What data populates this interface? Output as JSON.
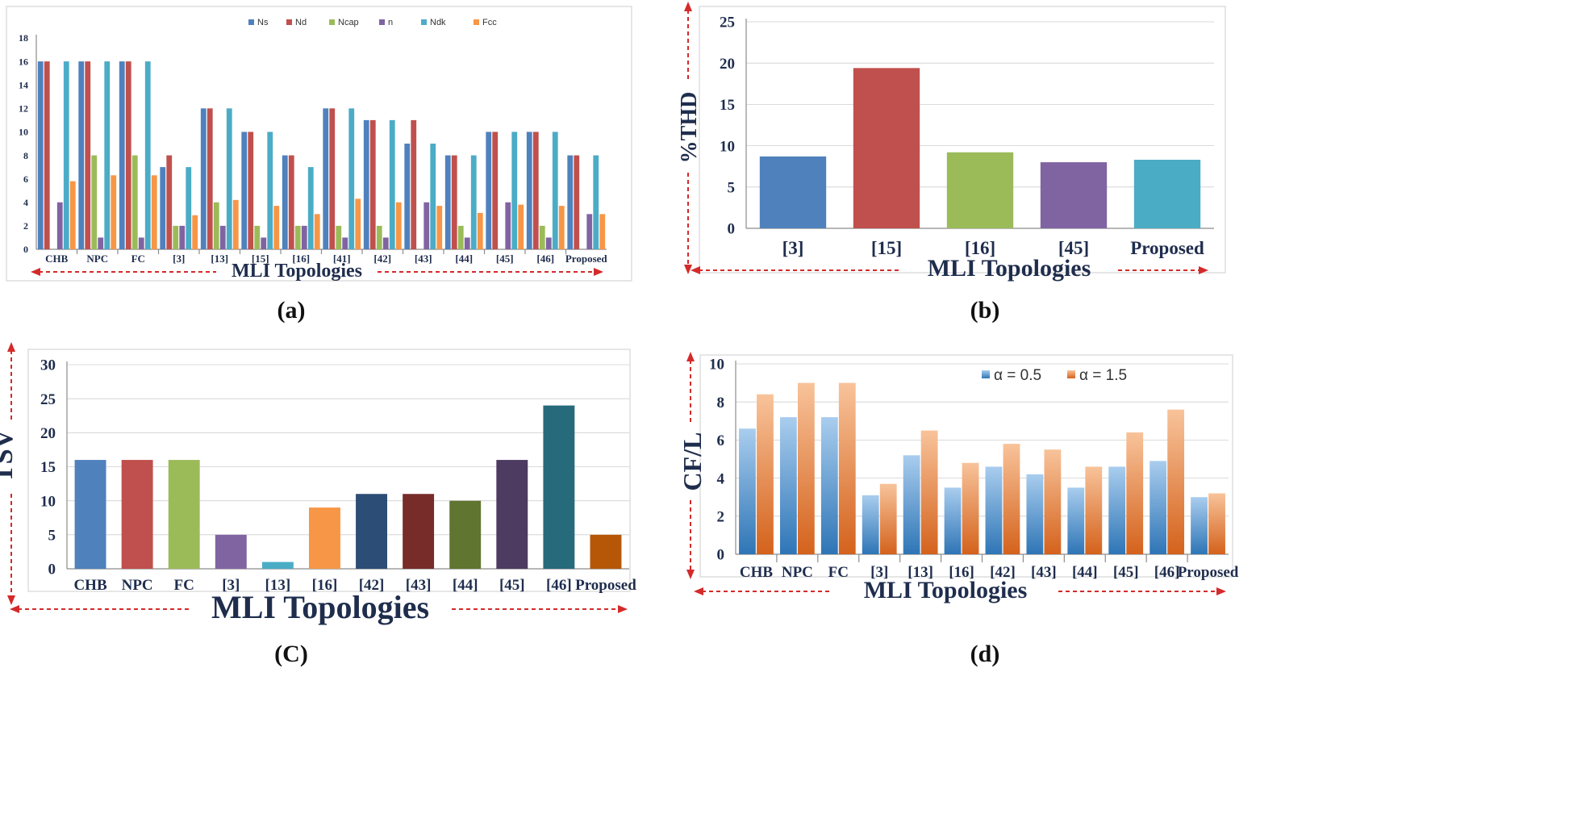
{
  "chart_data": [
    {
      "type": "bar",
      "panel_label": "(a)",
      "xlabel": "MLI Topologies",
      "ylabel": "",
      "ylim": [
        0,
        18
      ],
      "yticks": [
        "0",
        "2",
        "4",
        "6",
        "8",
        "10",
        "12",
        "14",
        "16",
        "18"
      ],
      "legend_position": "top",
      "categories": [
        "CHB",
        "NPC",
        "FC",
        "[3]",
        "[13]",
        "[15]",
        "[16]",
        "[41]",
        "[42]",
        "[43]",
        "[44]",
        "[45]",
        "[46]",
        "Proposed"
      ],
      "series": [
        {
          "name": "Ns",
          "color": "#4f81bd",
          "values": [
            16,
            16,
            16,
            7,
            12,
            10,
            8,
            12,
            11,
            9,
            8,
            10,
            10,
            8
          ]
        },
        {
          "name": "Nd",
          "color": "#c0504d",
          "values": [
            16,
            16,
            16,
            8,
            12,
            10,
            8,
            12,
            11,
            11,
            8,
            10,
            10,
            8
          ]
        },
        {
          "name": "Ncap",
          "color": "#9bbb59",
          "values": [
            0,
            8,
            8,
            2,
            4,
            2,
            2,
            2,
            2,
            0,
            2,
            0,
            2,
            0
          ]
        },
        {
          "name": "n",
          "color": "#8064a2",
          "values": [
            4,
            1,
            1,
            2,
            2,
            1,
            2,
            1,
            1,
            4,
            1,
            4,
            1,
            3
          ]
        },
        {
          "name": "Ndk",
          "color": "#4bacc6",
          "values": [
            16,
            16,
            16,
            7,
            12,
            10,
            7,
            12,
            11,
            9,
            8,
            10,
            10,
            8
          ]
        },
        {
          "name": "Fcc",
          "color": "#f79646",
          "values": [
            5.8,
            6.3,
            6.3,
            2.9,
            4.2,
            3.7,
            3.0,
            4.3,
            4.0,
            3.7,
            3.1,
            3.8,
            3.7,
            3.0
          ]
        }
      ]
    },
    {
      "type": "bar",
      "panel_label": "(b)",
      "xlabel": "MLI Topologies",
      "ylabel": "%THD",
      "ylim": [
        0,
        25
      ],
      "yticks": [
        "0",
        "5",
        "10",
        "15",
        "20",
        "25"
      ],
      "categories": [
        "[3]",
        "[15]",
        "[16]",
        "[45]",
        "Proposed"
      ],
      "colors": [
        "#4f81bd",
        "#c0504d",
        "#9bbb59",
        "#8064a2",
        "#4bacc6"
      ],
      "values": [
        8.7,
        19.4,
        9.2,
        8.0,
        8.3
      ]
    },
    {
      "type": "bar",
      "panel_label": "(C)",
      "xlabel": "MLI Topologies",
      "ylabel": "TSV",
      "ylim": [
        0,
        30
      ],
      "yticks": [
        "0",
        "5",
        "10",
        "15",
        "20",
        "25",
        "30"
      ],
      "categories": [
        "CHB",
        "NPC",
        "FC",
        "[3]",
        "[13]",
        "[16]",
        "[42]",
        "[43]",
        "[44]",
        "[45]",
        "[46]",
        "Proposed"
      ],
      "colors": [
        "#4f81bd",
        "#c0504d",
        "#9bbb59",
        "#8064a2",
        "#4bacc6",
        "#f79646",
        "#2c4d75",
        "#772c2a",
        "#5f7530",
        "#4d3b62",
        "#276a7c",
        "#b65708"
      ],
      "values": [
        16,
        16,
        16,
        5,
        1,
        9,
        11,
        11,
        10,
        16,
        24,
        5
      ]
    },
    {
      "type": "bar",
      "panel_label": "(d)",
      "xlabel": "MLI Topologies",
      "ylabel": "CF/L",
      "ylim": [
        0,
        10
      ],
      "yticks": [
        "0",
        "2",
        "4",
        "6",
        "8",
        "10"
      ],
      "legend_position": "top-right",
      "categories": [
        "CHB",
        "NPC",
        "FC",
        "[3]",
        "[13]",
        "[16]",
        "[42]",
        "[43]",
        "[44]",
        "[45]",
        "[46]",
        "Proposed"
      ],
      "series": [
        {
          "name": "α = 0.5",
          "color": "#5b9bd5",
          "values": [
            6.6,
            7.2,
            7.2,
            3.1,
            5.2,
            3.5,
            4.6,
            4.2,
            3.5,
            4.6,
            4.9,
            3.0
          ]
        },
        {
          "name": "α = 1.5",
          "color": "#ed7d31",
          "values": [
            8.4,
            9.0,
            9.0,
            3.7,
            6.5,
            4.8,
            5.8,
            5.5,
            4.6,
            6.4,
            7.6,
            3.2
          ]
        }
      ]
    }
  ]
}
